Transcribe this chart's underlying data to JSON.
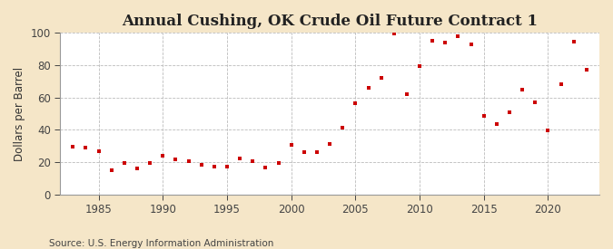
{
  "title": "Annual Cushing, OK Crude Oil Future Contract 1",
  "ylabel": "Dollars per Barrel",
  "source": "Source: U.S. Energy Information Administration",
  "fig_bg_color": "#f5e6c8",
  "plot_bg_color": "#ffffff",
  "marker_color": "#cc0000",
  "years": [
    1983,
    1984,
    1985,
    1986,
    1987,
    1988,
    1989,
    1990,
    1991,
    1992,
    1993,
    1994,
    1995,
    1996,
    1997,
    1998,
    1999,
    2000,
    2001,
    2002,
    2003,
    2004,
    2005,
    2006,
    2007,
    2008,
    2009,
    2010,
    2011,
    2012,
    2013,
    2014,
    2015,
    2016,
    2017,
    2018,
    2019,
    2020,
    2021,
    2022,
    2023
  ],
  "values": [
    29.5,
    28.8,
    26.9,
    15.0,
    19.2,
    15.9,
    19.6,
    24.0,
    21.5,
    20.6,
    18.5,
    17.2,
    17.0,
    22.1,
    20.6,
    16.7,
    19.3,
    30.4,
    25.9,
    26.1,
    31.1,
    41.5,
    56.5,
    66.0,
    72.3,
    99.6,
    61.9,
    79.4,
    95.1,
    94.0,
    97.9,
    93.1,
    48.7,
    43.3,
    50.9,
    65.1,
    56.9,
    39.6,
    68.1,
    94.3,
    77.0
  ],
  "xlim": [
    1982,
    2024
  ],
  "ylim": [
    0,
    100
  ],
  "yticks": [
    0,
    20,
    40,
    60,
    80,
    100
  ],
  "xticks": [
    1985,
    1990,
    1995,
    2000,
    2005,
    2010,
    2015,
    2020
  ],
  "title_fontsize": 12,
  "label_fontsize": 8.5,
  "source_fontsize": 7.5,
  "grid_color": "#bbbbbb",
  "marker_size": 10
}
